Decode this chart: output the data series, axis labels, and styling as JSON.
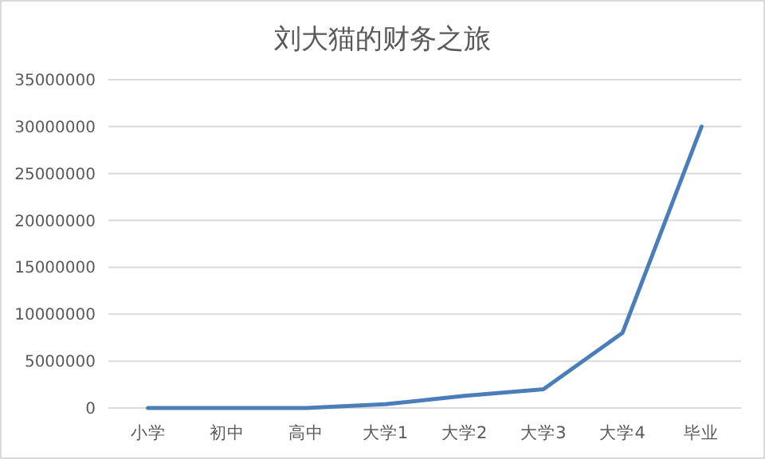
{
  "chart_data": {
    "type": "line",
    "title": "刘大猫的财务之旅",
    "categories": [
      "小学",
      "初中",
      "高中",
      "大学1",
      "大学2",
      "大学3",
      "大学4",
      "毕业"
    ],
    "series": [
      {
        "color": "#4a7ebb",
        "values": [
          0,
          0,
          0,
          400000,
          1300000,
          2000000,
          8000000,
          30000000
        ]
      }
    ],
    "ylim": [
      0,
      35000000
    ],
    "yticks": [
      0,
      5000000,
      10000000,
      15000000,
      20000000,
      25000000,
      30000000,
      35000000
    ],
    "grid": "y",
    "marker": "none",
    "line_style": "solid"
  }
}
